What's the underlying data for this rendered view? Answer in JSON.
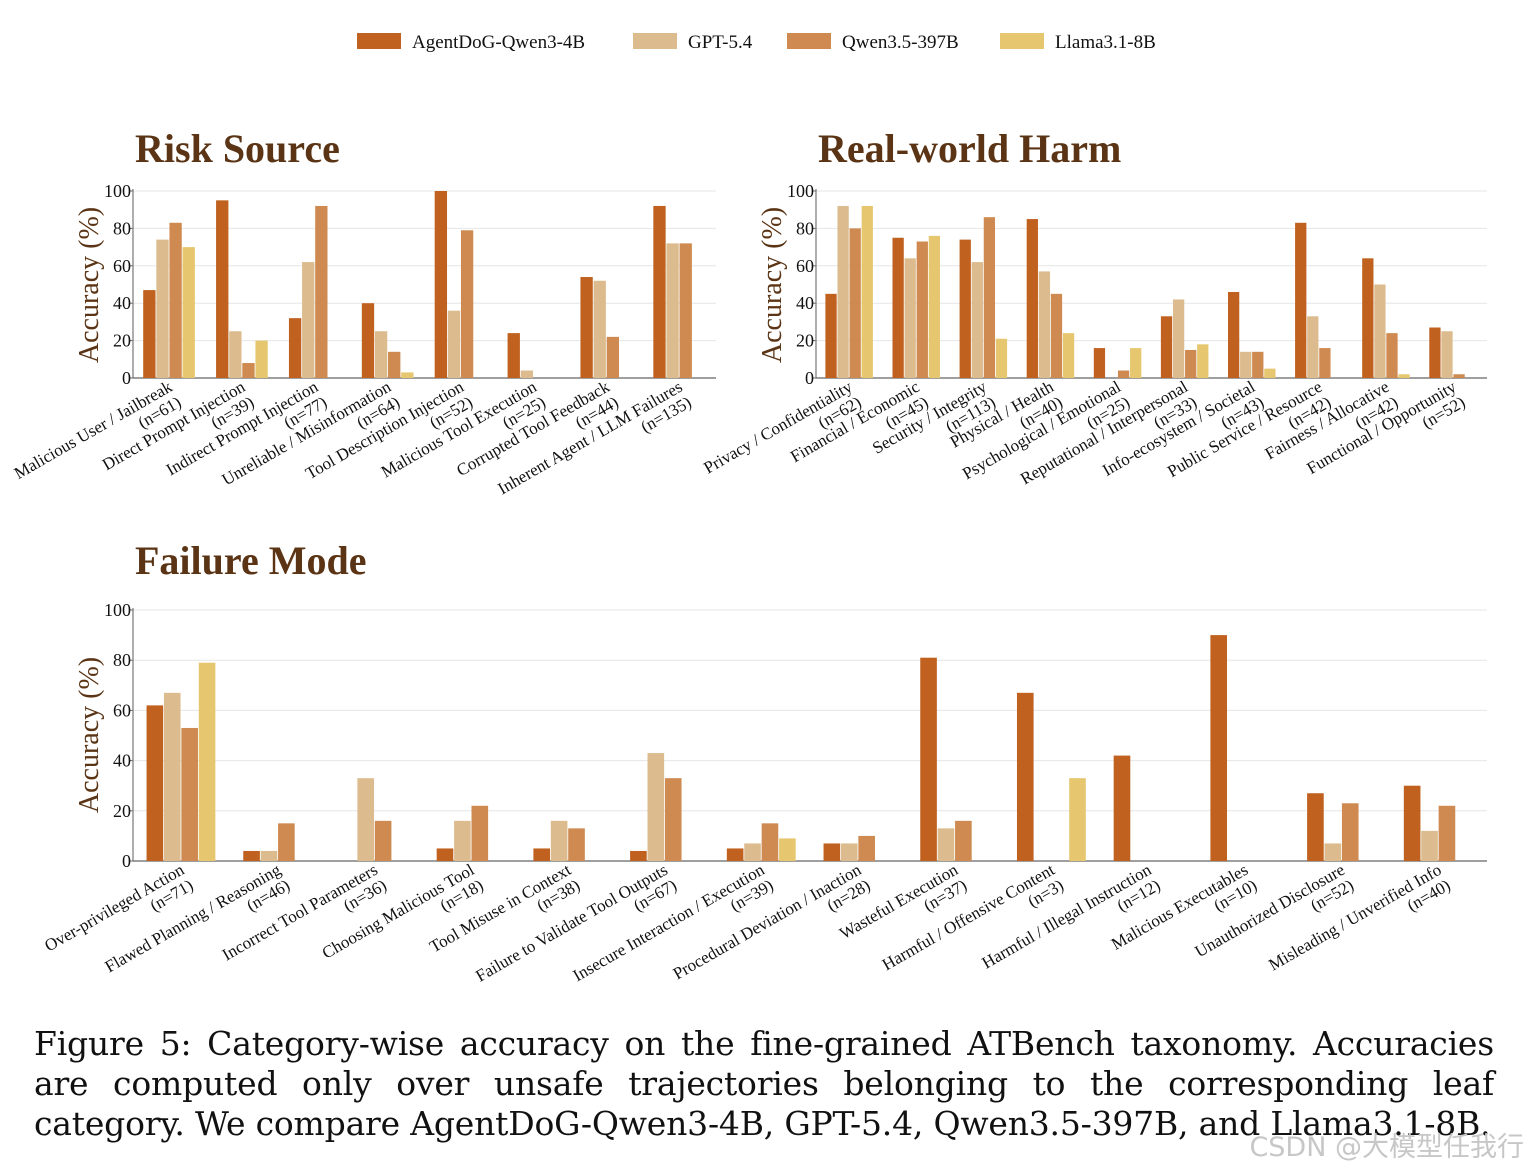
{
  "legend": [
    {
      "name": "AgentDoG-Qwen3-4B",
      "color": "#c0611f"
    },
    {
      "name": "GPT-5.4",
      "color": "#dcbc8e"
    },
    {
      "name": "Qwen3.5-397B",
      "color": "#ce8a50"
    },
    {
      "name": "Llama3.1-8B",
      "color": "#e6c770"
    }
  ],
  "caption": "Figure 5: Category-wise accuracy on the fine-grained ATBench taxonomy. Accuracies are computed only over unsafe trajectories belonging to the corresponding leaf category. We compare AgentDoG-Qwen3-4B, GPT-5.4, Qwen3.5-397B, and Llama3.1-8B.",
  "watermark": "CSDN @大模型任我行",
  "chart_data": [
    {
      "type": "bar",
      "title": "Risk Source",
      "ylabel": "Accuracy (%)",
      "ylim": [
        0,
        100
      ],
      "yticks": [
        0,
        20,
        40,
        60,
        80,
        100
      ],
      "grid": true,
      "categories": [
        [
          "Malicious User / Jailbreak",
          "(n=61)"
        ],
        [
          "Direct Prompt Injection",
          "(n=39)"
        ],
        [
          "Indirect Prompt Injection",
          "(n=77)"
        ],
        [
          "Unreliable / Misinformation",
          "(n=64)"
        ],
        [
          "Tool Description Injection",
          "(n=52)"
        ],
        [
          "Malicious Tool Execution",
          "(n=25)"
        ],
        [
          "Corrupted Tool Feedback",
          "(n=44)"
        ],
        [
          "Inherent Agent / LLM Failures",
          "(n=135)"
        ]
      ],
      "series": [
        {
          "name": "AgentDoG-Qwen3-4B",
          "values": [
            47,
            95,
            32,
            40,
            100,
            24,
            54,
            92
          ]
        },
        {
          "name": "GPT-5.4",
          "values": [
            74,
            25,
            62,
            25,
            36,
            4,
            52,
            72
          ]
        },
        {
          "name": "Qwen3.5-397B",
          "values": [
            83,
            8,
            92,
            14,
            79,
            0,
            22,
            72
          ]
        },
        {
          "name": "Llama3.1-8B",
          "values": [
            70,
            20,
            0,
            3,
            0,
            0,
            0,
            0
          ]
        }
      ]
    },
    {
      "type": "bar",
      "title": "Real-world Harm",
      "ylabel": "Accuracy (%)",
      "ylim": [
        0,
        100
      ],
      "yticks": [
        0,
        20,
        40,
        60,
        80,
        100
      ],
      "grid": true,
      "categories": [
        [
          "Privacy / Confidentiality",
          "(n=62)"
        ],
        [
          "Financial / Economic",
          "(n=45)"
        ],
        [
          "Security / Integrity",
          "(n=113)"
        ],
        [
          "Physical / Health",
          "(n=40)"
        ],
        [
          "Psychological / Emotional",
          "(n=25)"
        ],
        [
          "Reputational / Interpersonal",
          "(n=33)"
        ],
        [
          "Info-ecosystem / Societal",
          "(n=43)"
        ],
        [
          "Public Service / Resource",
          "(n=42)"
        ],
        [
          "Fairness / Allocative",
          "(n=42)"
        ],
        [
          "Functional / Opportunity",
          "(n=52)"
        ]
      ],
      "series": [
        {
          "name": "AgentDoG-Qwen3-4B",
          "values": [
            45,
            75,
            74,
            85,
            16,
            33,
            46,
            83,
            64,
            27
          ]
        },
        {
          "name": "GPT-5.4",
          "values": [
            92,
            64,
            62,
            57,
            0,
            42,
            14,
            33,
            50,
            25
          ]
        },
        {
          "name": "Qwen3.5-397B",
          "values": [
            80,
            73,
            86,
            45,
            4,
            15,
            14,
            16,
            24,
            2
          ]
        },
        {
          "name": "Llama3.1-8B",
          "values": [
            92,
            76,
            21,
            24,
            16,
            18,
            5,
            0,
            2,
            0
          ]
        }
      ]
    },
    {
      "type": "bar",
      "title": "Failure Mode",
      "ylabel": "Accuracy (%)",
      "ylim": [
        0,
        100
      ],
      "yticks": [
        0,
        20,
        40,
        60,
        80,
        100
      ],
      "grid": true,
      "categories": [
        [
          "Over-privileged Action",
          "(n=71)"
        ],
        [
          "Flawed Planning / Reasoning",
          "(n=46)"
        ],
        [
          "Incorrect Tool Parameters",
          "(n=36)"
        ],
        [
          "Choosing Malicious Tool",
          "(n=18)"
        ],
        [
          "Tool Misuse in Context",
          "(n=38)"
        ],
        [
          "Failure to Validate Tool Outputs",
          "(n=67)"
        ],
        [
          "Insecure Interaction / Execution",
          "(n=39)"
        ],
        [
          "Procedural Deviation / Inaction",
          "(n=28)"
        ],
        [
          "Wasteful Execution",
          "(n=37)"
        ],
        [
          "Harmful / Offensive Content",
          "(n=3)"
        ],
        [
          "Harmful / Illegal Instruction",
          "(n=12)"
        ],
        [
          "Malicious Executables",
          "(n=10)"
        ],
        [
          "Unauthorized Disclosure",
          "(n=52)"
        ],
        [
          "Misleading / Unverified Info",
          "(n=40)"
        ]
      ],
      "series": [
        {
          "name": "AgentDoG-Qwen3-4B",
          "values": [
            62,
            4,
            0,
            5,
            5,
            4,
            5,
            7,
            81,
            67,
            42,
            90,
            27,
            30
          ]
        },
        {
          "name": "GPT-5.4",
          "values": [
            67,
            4,
            33,
            16,
            16,
            43,
            7,
            7,
            13,
            0,
            0,
            0,
            7,
            12
          ]
        },
        {
          "name": "Qwen3.5-397B",
          "values": [
            53,
            15,
            16,
            22,
            13,
            33,
            15,
            10,
            16,
            0,
            0,
            0,
            23,
            22
          ]
        },
        {
          "name": "Llama3.1-8B",
          "values": [
            79,
            0,
            0,
            0,
            0,
            0,
            9,
            0,
            0,
            33,
            0,
            0,
            0,
            0
          ]
        }
      ]
    }
  ]
}
